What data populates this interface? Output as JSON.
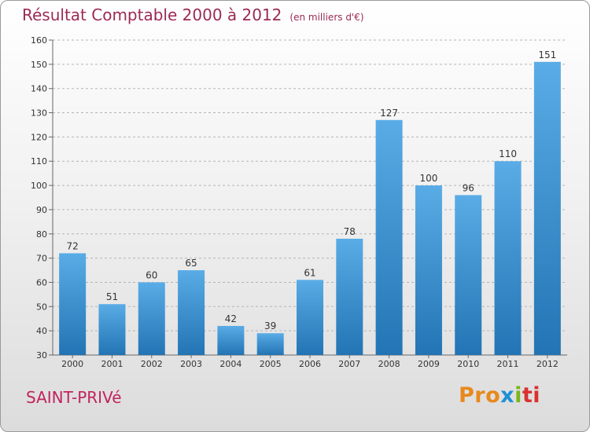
{
  "title": "Résultat Comptable 2000 à 2012",
  "subtitle": "(en milliers d'€)",
  "city": "SAINT-PRIVé",
  "logo": {
    "p1": "Pro",
    "p2": "x",
    "p3": "i",
    "p4": "ti"
  },
  "colors": {
    "bar_top": "#5aace6",
    "bar_bottom": "#2274b4",
    "title": "#9b2a55",
    "city": "#c0245e"
  },
  "chart_data": {
    "type": "bar",
    "title": "Résultat Comptable 2000 à 2012",
    "subtitle": "(en milliers d'€)",
    "categories": [
      "2000",
      "2001",
      "2002",
      "2003",
      "2004",
      "2005",
      "2006",
      "2007",
      "2008",
      "2009",
      "2010",
      "2011",
      "2012"
    ],
    "values": [
      72,
      51,
      60,
      65,
      42,
      39,
      61,
      78,
      127,
      100,
      96,
      110,
      151
    ],
    "ylim": [
      30,
      160
    ],
    "yticks": [
      30,
      40,
      50,
      60,
      70,
      80,
      90,
      100,
      110,
      120,
      130,
      140,
      150,
      160
    ],
    "xlabel": "",
    "ylabel": "",
    "grid": true
  }
}
